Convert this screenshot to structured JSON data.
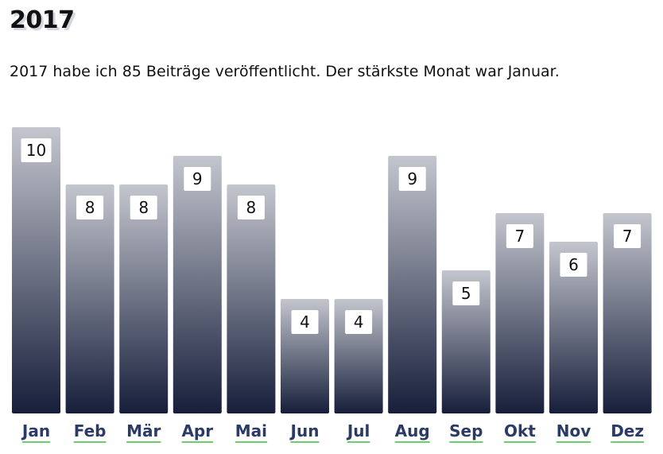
{
  "page": {
    "title": "2017",
    "summary": {
      "prefix": "2017 habe ich ",
      "count": "85",
      "suffix": " Beiträge veröffentlicht. Der stärkste Monat war Januar."
    }
  },
  "chart_data": {
    "type": "bar",
    "categories": [
      "Jan",
      "Feb",
      "Mär",
      "Apr",
      "Mai",
      "Jun",
      "Jul",
      "Aug",
      "Sep",
      "Okt",
      "Nov",
      "Dez"
    ],
    "values": [
      10,
      8,
      8,
      9,
      8,
      4,
      4,
      9,
      5,
      7,
      6,
      7
    ],
    "title": "",
    "xlabel": "",
    "ylabel": "",
    "ylim": [
      0,
      10
    ],
    "grid": false,
    "colors": {
      "bar_top": "#c4c6ce",
      "bar_bottom": "#161e3a",
      "label_bg": "#ffffff",
      "link_text": "#2c3a66",
      "link_underline": "#6cd06a"
    }
  }
}
